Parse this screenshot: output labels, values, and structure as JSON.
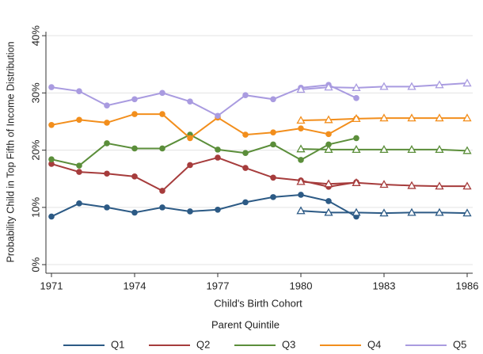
{
  "chart_data": {
    "type": "line",
    "y_label": "Probability Child in Top Fifth of Income Distribution",
    "x_label": "Child's Birth Cohort",
    "legend_title": "Parent Quintile",
    "x": [
      1971,
      1972,
      1973,
      1974,
      1975,
      1976,
      1977,
      1978,
      1979,
      1980,
      1981,
      1982,
      1983,
      1984,
      1985,
      1986
    ],
    "xlim": [
      1970.8,
      1986.2
    ],
    "xticks": [
      1971,
      1974,
      1977,
      1980,
      1983,
      1986
    ],
    "ylim": [
      -1.5,
      40.7
    ],
    "yticks": [
      {
        "value": 0,
        "label": "0%"
      },
      {
        "value": 10,
        "label": "10%"
      },
      {
        "value": 20,
        "label": "20%"
      },
      {
        "value": 30,
        "label": "30%"
      },
      {
        "value": 40,
        "label": "40%"
      }
    ],
    "grid": true,
    "legend_position": "bottom",
    "series": [
      {
        "name": "Q1",
        "color": "#2c5a85",
        "values": [
          8.4,
          10.7,
          10.0,
          9.1,
          10.0,
          9.3,
          9.6,
          10.9,
          11.8,
          12.2,
          11.1,
          8.4,
          null,
          null,
          null,
          null
        ],
        "triangle_values": [
          null,
          null,
          null,
          null,
          null,
          null,
          null,
          null,
          null,
          9.4,
          9.1,
          9.1,
          9.0,
          9.1,
          9.1,
          9.0
        ]
      },
      {
        "name": "Q2",
        "color": "#a63c3c",
        "values": [
          17.6,
          16.2,
          15.9,
          15.4,
          12.9,
          17.4,
          18.7,
          16.9,
          15.2,
          14.7,
          13.6,
          14.4,
          null,
          null,
          null,
          null
        ],
        "triangle_values": [
          null,
          null,
          null,
          null,
          null,
          null,
          null,
          null,
          null,
          14.5,
          14.1,
          14.3,
          14.0,
          13.8,
          13.7,
          13.7
        ]
      },
      {
        "name": "Q3",
        "color": "#5b8e3a",
        "values": [
          18.4,
          17.3,
          21.2,
          20.3,
          20.3,
          22.7,
          20.1,
          19.5,
          21.0,
          18.3,
          21.0,
          22.1,
          null,
          null,
          null,
          null
        ],
        "triangle_values": [
          null,
          null,
          null,
          null,
          null,
          null,
          null,
          null,
          null,
          20.2,
          20.1,
          20.1,
          20.1,
          20.1,
          20.1,
          19.9
        ]
      },
      {
        "name": "Q4",
        "color": "#f28e1c",
        "values": [
          24.4,
          25.3,
          24.8,
          26.3,
          26.3,
          22.1,
          25.7,
          22.7,
          23.1,
          23.8,
          22.8,
          25.5,
          null,
          null,
          null,
          null
        ],
        "triangle_values": [
          null,
          null,
          null,
          null,
          null,
          null,
          null,
          null,
          null,
          25.2,
          25.3,
          25.5,
          25.6,
          25.6,
          25.6,
          25.6
        ]
      },
      {
        "name": "Q5",
        "color": "#a99be0",
        "values": [
          31.0,
          30.3,
          27.8,
          28.9,
          30.0,
          28.5,
          26.0,
          29.6,
          28.9,
          30.9,
          31.4,
          29.1,
          null,
          null,
          null,
          null
        ],
        "triangle_values": [
          null,
          null,
          null,
          null,
          null,
          null,
          null,
          null,
          null,
          30.6,
          31.0,
          30.9,
          31.1,
          31.1,
          31.4,
          31.7
        ]
      }
    ]
  }
}
